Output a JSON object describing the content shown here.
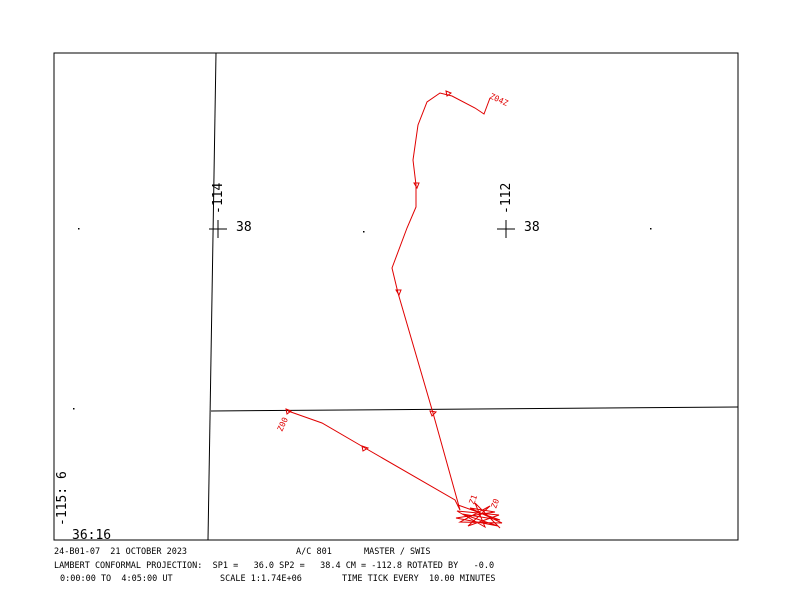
{
  "map": {
    "grid_labels": {
      "lon_west": "-114",
      "lat_west": "38",
      "lon_east": "-112",
      "lat_east": "38"
    },
    "corner_labels": {
      "lon": "-115: 6",
      "lat": "36:16"
    },
    "track_labels": {
      "start": "Z00",
      "end": "Z04Z",
      "mid1": "Z1",
      "mid2": "Z0"
    }
  },
  "footer": {
    "line1": {
      "id": "24-B01-07  21 OCTOBER 2023",
      "aircraft": "A/C 801",
      "source": "MASTER / SWIS"
    },
    "line2": "LAMBERT CONFORMAL PROJECTION:  SP1 =   36.0 SP2 =   38.4 CM = -112.8 ROTATED BY   -0.0",
    "line3": {
      "time": "0:00:00 TO  4:05:00 UT",
      "scale": "SCALE 1:1.74E+06",
      "tick": "TIME TICK EVERY  10.00 MINUTES"
    }
  }
}
